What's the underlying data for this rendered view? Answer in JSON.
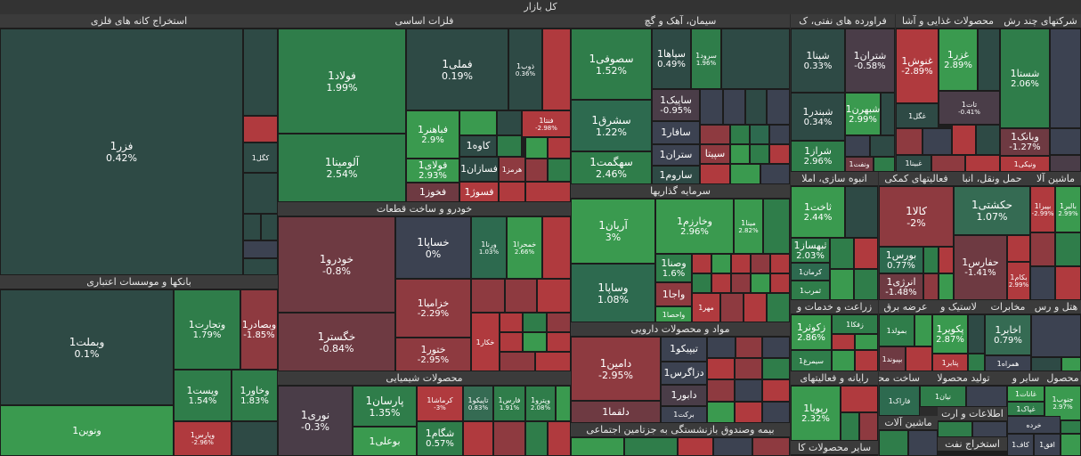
{
  "title": "کل بازار",
  "sectors": {
    "s1": "استخراج کانه های فلزی",
    "s2": "فلزات اساسی",
    "s3": "سیمان، آهک و گچ",
    "s4": "فراورده های نفتی، ک",
    "s5": "محصولات غذایی و آشا",
    "s6": "شرکتهای چند رش",
    "s7": "بانکها و موسسات اعتباری",
    "s8": "خودرو و ساخت قطعات",
    "s9": "سرمایه گذاریها",
    "s10": "انبوه سازی، املا",
    "s11": "فعالیتهای کمکی",
    "s12": "حمل ونقل، انبا",
    "s13": "ماشین آلا",
    "s14": "مواد و محصولات دارویی",
    "s15": "محصولات شیمیایی",
    "s16": "بیمه وصندوق بازنشستگی به جزتامین اجتماعی",
    "s17": "زراعت و خدمات و",
    "s18": "عرضه برق",
    "s19": "لاستیک و",
    "s20": "مخابرات",
    "s21": "هتل و رس",
    "s22": "رایانه و فعالیتهای",
    "s23": "ساخت محص",
    "s24": "تولید محصولا",
    "s25": "سایر و",
    "s26": "محصول",
    "s27": "اطلاعات و ارت",
    "s28": "ماشین آلات",
    "s29": "سایر محصولات کا",
    "s30": "استخراج نفت"
  },
  "tiles": {
    "fazar": {
      "name": "فزر1",
      "pct": "0.42%"
    },
    "kgol": {
      "name": "کگل1"
    },
    "vabmellat": {
      "name": "وبملت1",
      "pct": "0.1%"
    },
    "vtejarat": {
      "name": "وتجارت1",
      "pct": "1.79%"
    },
    "vbsader": {
      "name": "وبصادر1",
      "pct": "-1.85%"
    },
    "vpost": {
      "name": "وپست1",
      "pct": "1.54%"
    },
    "vkhavar": {
      "name": "وخاور1",
      "pct": "1.83%"
    },
    "vparsi": {
      "name": "وپارس1",
      "pct": "-2.96%"
    },
    "vnovin": {
      "name": "ونوین1"
    },
    "foolad": {
      "name": "فولاد1",
      "pct": "1.99%"
    },
    "fameli": {
      "name": "فملی1",
      "pct": "0.19%"
    },
    "zob": {
      "name": "ذوب1",
      "pct": "0.36%"
    },
    "alumina": {
      "name": "آلومینا1",
      "pct": "2.54%"
    },
    "fkhooz": {
      "name": "فخوز1"
    },
    "fbahonar": {
      "name": "فباهنر1",
      "pct": "2.9%"
    },
    "folai": {
      "name": "فولای1",
      "pct": "2.93%"
    },
    "kaveh": {
      "name": "کاوه1"
    },
    "fesazan": {
      "name": "فسازان1"
    },
    "hormoz": {
      "name": "هرمز1"
    },
    "fesooz": {
      "name": "فسوژ1"
    },
    "fnta": {
      "name": "فنتا1",
      "pct": "-2.98%"
    },
    "sesofi": {
      "name": "سصوفی1",
      "pct": "1.52%"
    },
    "sepaha": {
      "name": "سپاها1",
      "pct": "0.49%"
    },
    "sarood": {
      "name": "سرود1",
      "pct": "1.96%"
    },
    "sashargh": {
      "name": "سشرق1",
      "pct": "1.22%"
    },
    "sapik": {
      "name": "ساپیک1",
      "pct": "-0.95%"
    },
    "safar": {
      "name": "سافار1"
    },
    "setran": {
      "name": "ستران1"
    },
    "sepita": {
      "name": "سپیتا"
    },
    "sahgmat": {
      "name": "سهگمت1",
      "pct": "2.46%"
    },
    "saroom": {
      "name": "ساروم1"
    },
    "shepna": {
      "name": "شپنا1",
      "pct": "0.33%"
    },
    "shetran": {
      "name": "شتران1",
      "pct": "-0.58%"
    },
    "shebandar": {
      "name": "شبندر1",
      "pct": "0.34%"
    },
    "shebhren": {
      "name": "شبهرن1",
      "pct": "2.99%"
    },
    "sheraz": {
      "name": "شراز1",
      "pct": "2.96%"
    },
    "vnaft": {
      "name": "ونفت1"
    },
    "ghnoosh": {
      "name": "غنوش1",
      "pct": "-2.89%"
    },
    "ghzar": {
      "name": "غزر1",
      "pct": "2.89%"
    },
    "tat": {
      "name": "تات1",
      "pct": "-0.41%"
    },
    "gol": {
      "name": "غگل1"
    },
    "gbena": {
      "name": "غبینا1"
    },
    "sheasta": {
      "name": "شستا1",
      "pct": "2.06%"
    },
    "vbank": {
      "name": "وبانک1",
      "pct": "-1.27%"
    },
    "vniki": {
      "name": "ونیکی1"
    },
    "khodro": {
      "name": "خودرو1",
      "pct": "-0.8%"
    },
    "khsapa": {
      "name": "خساپا1",
      "pct": "0%"
    },
    "vrena": {
      "name": "ورنا1",
      "pct": "1.03%"
    },
    "khamhra": {
      "name": "خمحرا1",
      "pct": "2.66%"
    },
    "khzamia": {
      "name": "خزامیا1",
      "pct": "-2.29%"
    },
    "khgostar": {
      "name": "خگستر1",
      "pct": "-0.84%"
    },
    "khtoor": {
      "name": "ختور1",
      "pct": "-2.95%"
    },
    "khkar": {
      "name": "خکار1"
    },
    "arian": {
      "name": "آریان1",
      "pct": "3%"
    },
    "vkharazm": {
      "name": "وخارزم1",
      "pct": "2.96%"
    },
    "mina": {
      "name": "مینا1",
      "pct": "2.82%"
    },
    "vsapa": {
      "name": "وساپا1",
      "pct": "1.08%"
    },
    "vsna": {
      "name": "وصنا1",
      "pct": "1.6%"
    },
    "vaja": {
      "name": "واجا1"
    },
    "vaheda": {
      "name": "واحصا1"
    },
    "mehr": {
      "name": "مهر1"
    },
    "damin": {
      "name": "دامین1",
      "pct": "-2.95%"
    },
    "tipiko": {
      "name": "تیپیکو1"
    },
    "dzagros": {
      "name": "دزاگرس1"
    },
    "daboor": {
      "name": "دابور1"
    },
    "barekat": {
      "name": "برکت1"
    },
    "dlagma": {
      "name": "دلقما1"
    },
    "nori": {
      "name": "نوری1",
      "pct": "-0.3%"
    },
    "parsan": {
      "name": "پارسان1",
      "pct": "1.35%"
    },
    "karmasha": {
      "name": "کرماشا1",
      "pct": "-3%"
    },
    "tapiko": {
      "name": "تاپیکو1",
      "pct": "0.83%"
    },
    "fares": {
      "name": "فارس1",
      "pct": "1.91%"
    },
    "vpetro": {
      "name": "وپترو1",
      "pct": "2.08%"
    },
    "shegam": {
      "name": "شگام1",
      "pct": "0.57%"
    },
    "buali": {
      "name": "بوعلی1"
    },
    "takhat": {
      "name": "ثاخت1",
      "pct": "2.44%"
    },
    "tahsaz": {
      "name": "ثبهساز1",
      "pct": "2.03%"
    },
    "kerman": {
      "name": "کرمان1"
    },
    "tmrab": {
      "name": "ثمرب1"
    },
    "kala": {
      "name": "کالا1",
      "pct": "-2%"
    },
    "boors": {
      "name": "بورس1",
      "pct": "0.77%"
    },
    "enrji": {
      "name": "انرژی1",
      "pct": "-1.48%"
    },
    "hkashti": {
      "name": "حکشتی1",
      "pct": "1.07%"
    },
    "hafars": {
      "name": "حفارس1",
      "pct": "-1.41%"
    },
    "biram": {
      "name": "بکام1",
      "pct": "2.99%"
    },
    "bpira": {
      "name": "بپیرا1",
      "pct": "-2.99%"
    },
    "bliar": {
      "name": "بالبر1",
      "pct": "2.99%"
    },
    "zkosar": {
      "name": "زکوثر1",
      "pct": "2.86%"
    },
    "zaghah": {
      "name": "زفکا1"
    },
    "simorgh": {
      "name": "سیمرغ1"
    },
    "bmolt": {
      "name": "بمولد1"
    },
    "bpiza": {
      "name": "بپیوند1"
    },
    "pkoor": {
      "name": "پکویر1",
      "pct": "2.87%"
    },
    "ptayer": {
      "name": "پتایر1"
    },
    "akhaber": {
      "name": "اخابر1",
      "pct": "0.79%"
    },
    "hamra": {
      "name": "همراه1"
    },
    "rpoya": {
      "name": "رپویا1",
      "pct": "2.32%"
    },
    "faradak": {
      "name": "فاراک1"
    },
    "nian": {
      "name": "نیان1"
    },
    "ghanat": {
      "name": "غانات1"
    },
    "ghapakh": {
      "name": "غپاک1"
    },
    "jonoob": {
      "name": "جنوب1",
      "pct": "2.97%"
    },
    "khardeh": {
      "name": "خرده"
    },
    "kaf": {
      "name": "کاف1"
    },
    "afgh": {
      "name": "افق1"
    }
  }
}
